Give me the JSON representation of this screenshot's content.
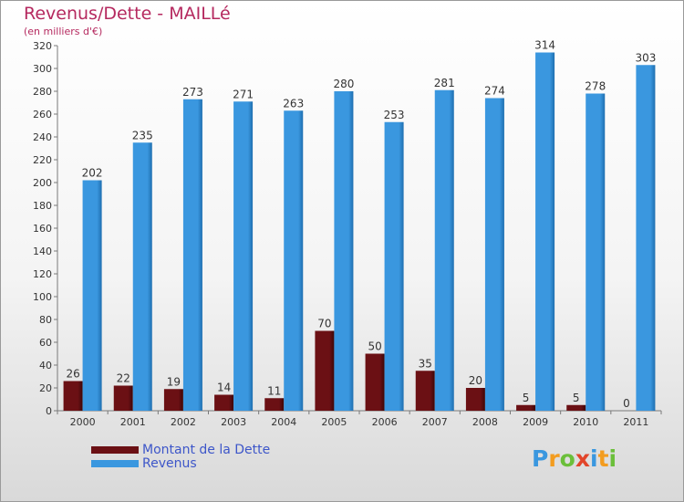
{
  "title": "Revenus/Dette - MAILLé",
  "subtitle": "(en milliers d'€)",
  "colors": {
    "title": "#b5295f",
    "legend_text": "#3d56c9",
    "dette": "#6b1014",
    "revenus": "#3a97df",
    "logo": [
      "#3a97df",
      "#f39c1f",
      "#6bbf3a",
      "#e2452a",
      "#3a97df",
      "#f39c1f",
      "#6bbf3a"
    ]
  },
  "legend": [
    {
      "label": "Montant de la Dette",
      "color": "#6b1014"
    },
    {
      "label": "Revenus",
      "color": "#3a97df"
    }
  ],
  "logo": {
    "text": "Proxiti",
    "letters": [
      "P",
      "r",
      "o",
      "x",
      "i",
      "t",
      "i"
    ]
  },
  "chart_data": {
    "type": "bar",
    "categories": [
      "2000",
      "2001",
      "2002",
      "2003",
      "2004",
      "2005",
      "2006",
      "2007",
      "2008",
      "2009",
      "2010",
      "2011"
    ],
    "series": [
      {
        "name": "Montant de la Dette",
        "values": [
          26,
          22,
          19,
          14,
          11,
          70,
          50,
          35,
          20,
          5,
          5,
          0
        ]
      },
      {
        "name": "Revenus",
        "values": [
          202,
          235,
          273,
          271,
          263,
          280,
          253,
          281,
          274,
          314,
          278,
          303
        ]
      }
    ],
    "ylim": [
      0,
      320
    ],
    "yticks": [
      0,
      20,
      40,
      60,
      80,
      100,
      120,
      140,
      160,
      180,
      200,
      220,
      240,
      260,
      280,
      300,
      320
    ],
    "grid": false,
    "legend_position": "bottom-left",
    "data_labels": true
  }
}
